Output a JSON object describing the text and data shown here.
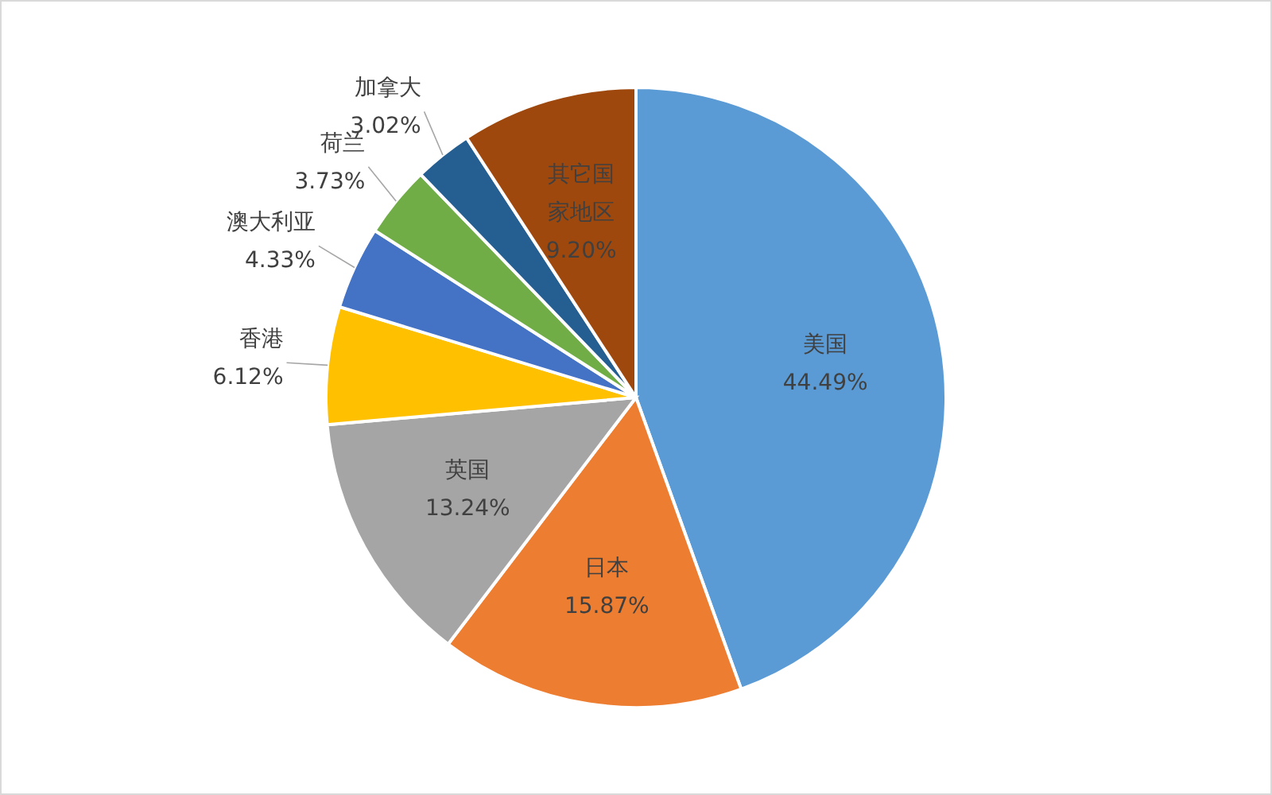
{
  "chart_data": {
    "type": "pie",
    "categories": [
      "美国",
      "日本",
      "英国",
      "香港",
      "澳大利亚",
      "荷兰",
      "加拿大",
      "其它国家地区"
    ],
    "values": [
      44.49,
      15.87,
      13.24,
      6.12,
      4.33,
      3.73,
      3.02,
      9.2
    ],
    "value_labels": [
      "44.49%",
      "15.87%",
      "13.24%",
      "6.12%",
      "4.33%",
      "3.73%",
      "3.02%",
      "9.20%"
    ],
    "colors": [
      "#5b9bd5",
      "#ed7d31",
      "#a5a5a5",
      "#ffc000",
      "#4472c4",
      "#70ad47",
      "#255e91",
      "#9e480e"
    ]
  }
}
